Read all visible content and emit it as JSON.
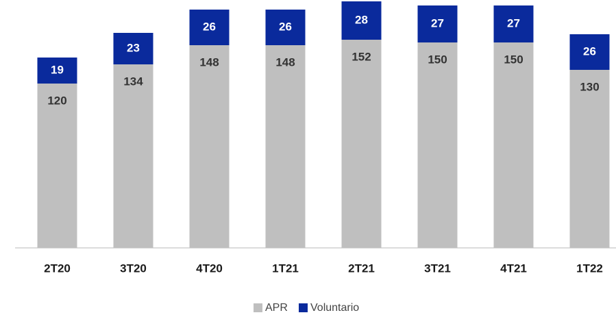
{
  "chart_data": {
    "type": "stacked_bar",
    "categories": [
      "2T20",
      "3T20",
      "4T20",
      "1T21",
      "2T21",
      "3T21",
      "4T21",
      "1T22"
    ],
    "series": [
      {
        "name": "APR",
        "color": "#bfbfbf",
        "values": [
          120,
          134,
          148,
          148,
          152,
          150,
          150,
          130
        ]
      },
      {
        "name": "Voluntario",
        "color": "#0a2a9c",
        "values": [
          19,
          23,
          26,
          26,
          28,
          27,
          27,
          26
        ]
      }
    ],
    "ylim": [
      0,
      180
    ]
  }
}
